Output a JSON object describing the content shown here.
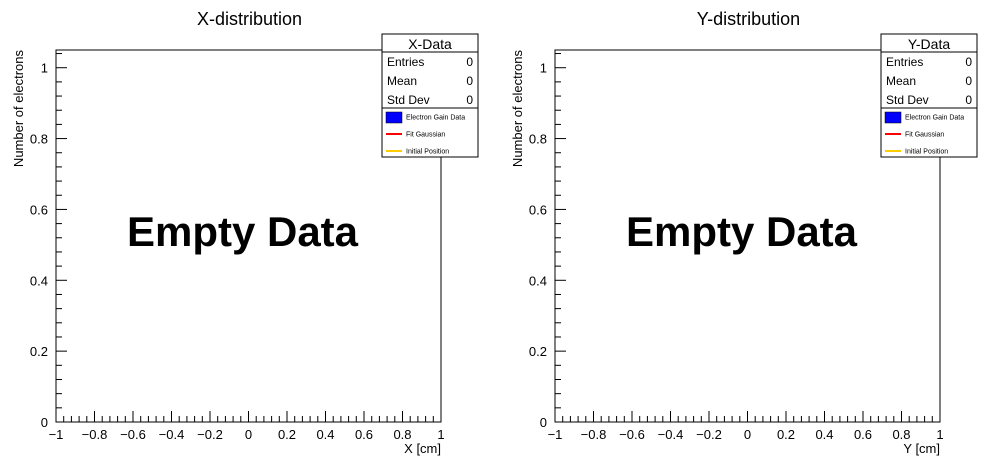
{
  "chart_data": [
    {
      "type": "bar",
      "title": "X-distribution",
      "xlabel": "X [cm]",
      "ylabel": "Number of electrons",
      "xlim": [
        -1,
        1
      ],
      "ylim": [
        0,
        1.05
      ],
      "x_ticks": [
        -1,
        -0.8,
        -0.6,
        -0.4,
        -0.2,
        0,
        0.2,
        0.4,
        0.6,
        0.8,
        1
      ],
      "x_tick_labels": [
        "−1",
        "−0.8",
        "−0.6",
        "−0.4",
        "−0.2",
        "0",
        "0.2",
        "0.4",
        "0.6",
        "0.8",
        "1"
      ],
      "y_ticks": [
        0,
        0.2,
        0.4,
        0.6,
        0.8,
        1
      ],
      "y_tick_labels": [
        "0",
        "0.2",
        "0.4",
        "0.6",
        "0.8",
        "1"
      ],
      "annotation": "Empty Data",
      "series": [],
      "stats_box": {
        "title": "X-Data",
        "rows": [
          {
            "label": "Entries",
            "value": "0"
          },
          {
            "label": "Mean",
            "value": "0"
          },
          {
            "label": "Std Dev",
            "value": "0"
          }
        ]
      },
      "legend": {
        "placement": "top-right",
        "entries": [
          {
            "label": "Electron Gain Data",
            "kind": "box",
            "color": "#0000ff"
          },
          {
            "label": "Fit Gaussian",
            "kind": "line",
            "color": "#ff0000"
          },
          {
            "label": "Initial Position",
            "kind": "line",
            "color": "#ffcc00"
          }
        ]
      },
      "grid": false
    },
    {
      "type": "bar",
      "title": "Y-distribution",
      "xlabel": "Y [cm]",
      "ylabel": "Number of electrons",
      "xlim": [
        -1,
        1
      ],
      "ylim": [
        0,
        1.05
      ],
      "x_ticks": [
        -1,
        -0.8,
        -0.6,
        -0.4,
        -0.2,
        0,
        0.2,
        0.4,
        0.6,
        0.8,
        1
      ],
      "x_tick_labels": [
        "−1",
        "−0.8",
        "−0.6",
        "−0.4",
        "−0.2",
        "0",
        "0.2",
        "0.4",
        "0.6",
        "0.8",
        "1"
      ],
      "y_ticks": [
        0,
        0.2,
        0.4,
        0.6,
        0.8,
        1
      ],
      "y_tick_labels": [
        "0",
        "0.2",
        "0.4",
        "0.6",
        "0.8",
        "1"
      ],
      "annotation": "Empty Data",
      "series": [],
      "stats_box": {
        "title": "Y-Data",
        "rows": [
          {
            "label": "Entries",
            "value": "0"
          },
          {
            "label": "Mean",
            "value": "0"
          },
          {
            "label": "Std Dev",
            "value": "0"
          }
        ]
      },
      "legend": {
        "placement": "top-right",
        "entries": [
          {
            "label": "Electron Gain Data",
            "kind": "box",
            "color": "#0000ff"
          },
          {
            "label": "Fit Gaussian",
            "kind": "line",
            "color": "#ff0000"
          },
          {
            "label": "Initial Position",
            "kind": "line",
            "color": "#ffcc00"
          }
        ]
      },
      "grid": false
    }
  ]
}
